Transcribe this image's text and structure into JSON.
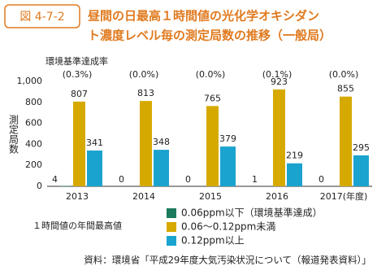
{
  "chart_data": {
    "type": "bar",
    "figure_label": "図 4-7-2",
    "title": [
      "昼間の日最高１時間値の光化学オキシダン",
      "ト濃度レベル毎の測定局数の推移（一般局）"
    ],
    "y_label": "測定局数",
    "rate_title": "環境基準達成率",
    "rate_labels": [
      "(0.3%)",
      "(0.0%)",
      "(0.0%)",
      "(0.1%)",
      "(0.0%)"
    ],
    "categories": [
      "2013",
      "2014",
      "2015",
      "2016",
      "2017(年度)"
    ],
    "legend_title": "１時間値の年間最高値",
    "series": [
      {
        "name": "0.06ppm以下（環境基準達成）",
        "color": "#1b7a5c",
        "values": [
          4,
          0,
          0,
          1,
          0
        ]
      },
      {
        "name": "0.06～0.12ppm未満",
        "color": "#d6a900",
        "values": [
          807,
          813,
          765,
          923,
          855
        ]
      },
      {
        "name": "0.12ppm以上",
        "color": "#1aa3cf",
        "values": [
          341,
          348,
          379,
          219,
          295
        ]
      }
    ],
    "ylim": [
      0,
      1000
    ],
    "yticks": [
      0,
      200,
      400,
      600,
      800,
      {
        "value": 1000,
        "label": "1,000"
      }
    ],
    "grid": false,
    "source": "資料：環境省「平成29年度大気汚染状況について（報道発表資料）」"
  }
}
